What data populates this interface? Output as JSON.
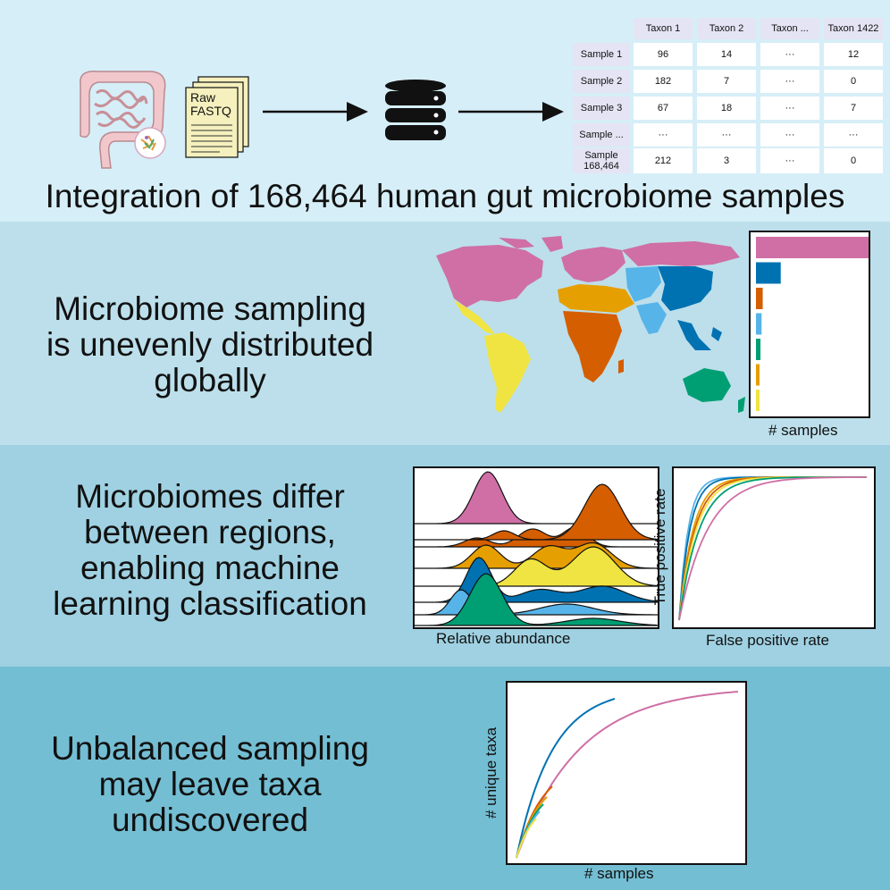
{
  "header": {
    "doc_label_line1": "Raw",
    "doc_label_line2": "FASTQ",
    "title": "Integration of 168,464 human gut microbiome samples"
  },
  "table": {
    "columns": [
      "Taxon 1",
      "Taxon 2",
      "Taxon ...",
      "Taxon 1422"
    ],
    "rows": [
      {
        "label": "Sample 1",
        "values": [
          "96",
          "14",
          "···",
          "12"
        ]
      },
      {
        "label": "Sample 2",
        "values": [
          "182",
          "7",
          "···",
          "0"
        ]
      },
      {
        "label": "Sample 3",
        "values": [
          "67",
          "18",
          "···",
          "7"
        ]
      },
      {
        "label": "Sample ...",
        "values": [
          "···",
          "···",
          "···",
          "···"
        ]
      },
      {
        "label": "Sample\n168,464",
        "values": [
          "212",
          "3",
          "···",
          "0"
        ]
      }
    ]
  },
  "section2": {
    "headline": "Microbiome sampling\nis unevenly distributed\nglobally",
    "bar_xlabel": "# samples"
  },
  "section3": {
    "headline": "Microbiomes differ\nbetween regions,\nenabling machine\nlearning classification",
    "ridge_xlabel": "Relative abundance",
    "roc_xlabel": "False positive rate",
    "roc_ylabel": "True positive rate"
  },
  "section4": {
    "headline": "Unbalanced sampling\nmay leave taxa\nundiscovered",
    "xlabel": "# samples",
    "ylabel": "# unique taxa"
  },
  "colors": {
    "pink": "#cf6fa5",
    "blue": "#0072b2",
    "orange": "#d55e00",
    "lightblue": "#56b4e9",
    "green": "#009e73",
    "amber": "#e69f00",
    "yellow": "#f0e442"
  },
  "chart_data": [
    {
      "type": "bar",
      "orientation": "horizontal",
      "xlabel": "# samples",
      "categories": [
        "",
        "",
        "",
        "",
        "",
        "",
        ""
      ],
      "series_colors": [
        "#cf6fa5",
        "#0072b2",
        "#d55e00",
        "#56b4e9",
        "#009e73",
        "#e69f00",
        "#f0e442"
      ],
      "values": [
        100,
        22,
        6,
        5,
        4,
        3,
        2
      ]
    },
    {
      "type": "line",
      "xlabel": "False positive rate",
      "ylabel": "True positive rate",
      "series_colors": [
        "#56b4e9",
        "#0072b2",
        "#e69f00",
        "#d55e00",
        "#f0e442",
        "#009e73",
        "#cf6fa5"
      ]
    },
    {
      "type": "line",
      "xlabel": "# samples",
      "ylabel": "# unique taxa",
      "series_colors": [
        "#0072b2",
        "#cf6fa5",
        "#d55e00",
        "#e69f00",
        "#009e73",
        "#56b4e9",
        "#f0e442"
      ]
    }
  ]
}
